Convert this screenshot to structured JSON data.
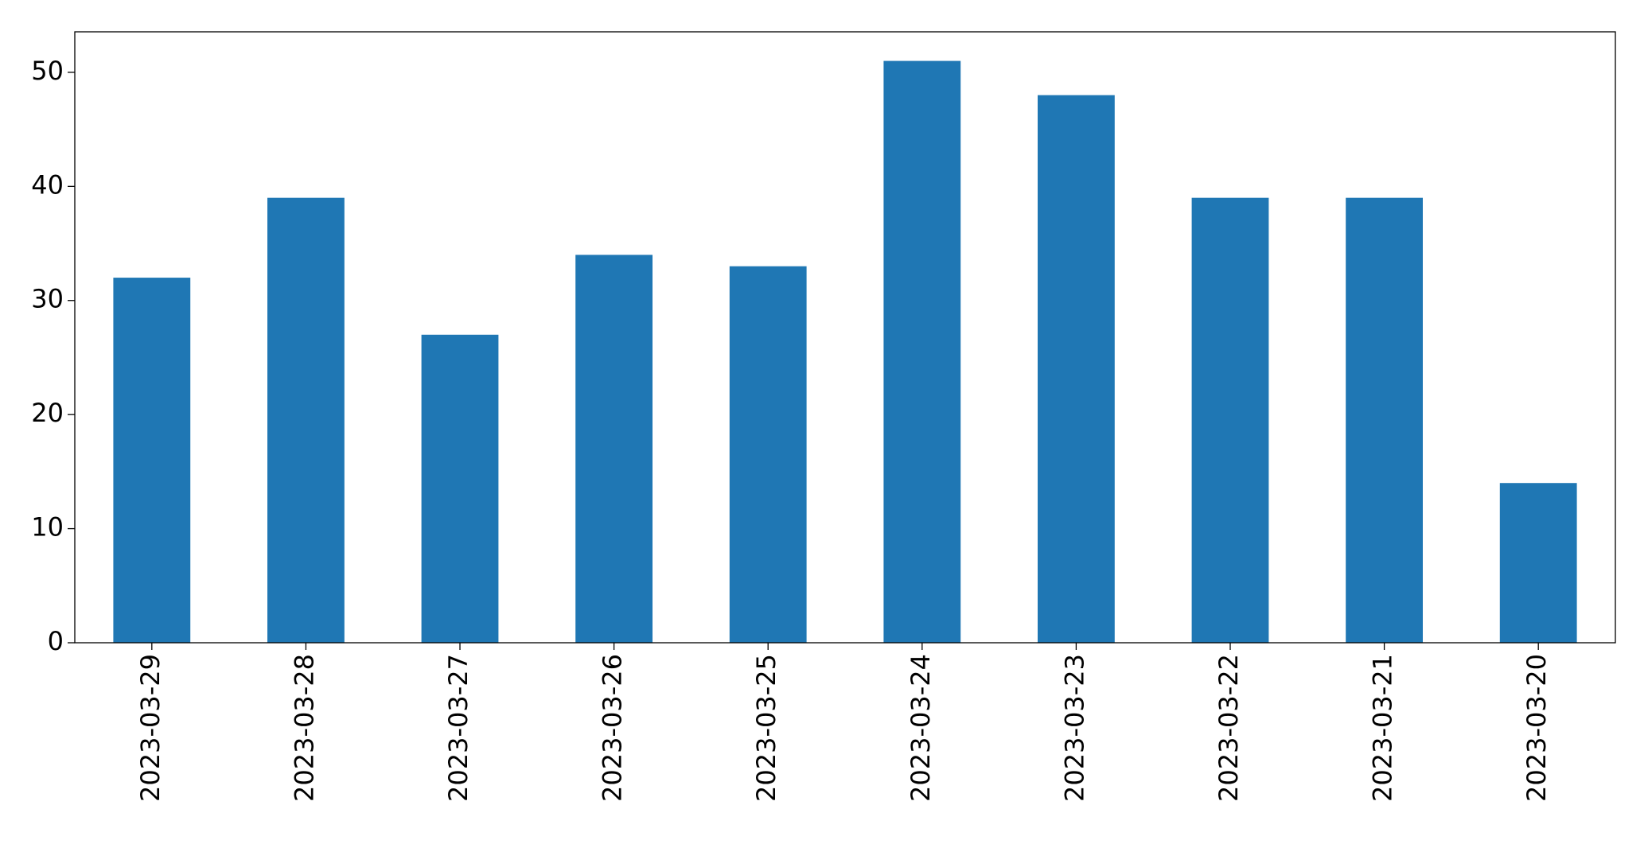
{
  "chart_data": {
    "type": "bar",
    "categories": [
      "2023-03-29",
      "2023-03-28",
      "2023-03-27",
      "2023-03-26",
      "2023-03-25",
      "2023-03-24",
      "2023-03-23",
      "2023-03-22",
      "2023-03-21",
      "2023-03-20"
    ],
    "values": [
      32,
      39,
      27,
      34,
      33,
      51,
      48,
      39,
      39,
      14
    ],
    "color": "#1f77b4",
    "ylim": [
      0,
      53.55
    ],
    "yticks": [
      0,
      10,
      20,
      30,
      40,
      50
    ],
    "grid": false
  }
}
